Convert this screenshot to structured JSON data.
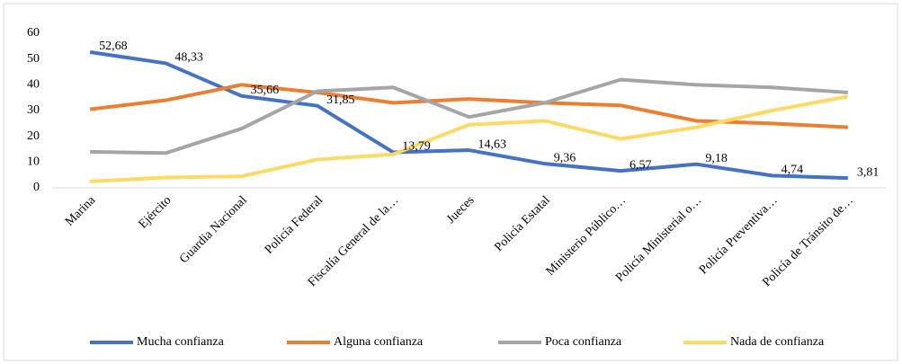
{
  "chart_data": {
    "type": "line",
    "categories": [
      "Marina",
      "Ejército",
      "Guardia Nacional",
      "Policía Federal",
      "Fiscalía General de la…",
      "Jueces",
      "Policía Estatal",
      "Ministerio Público…",
      "Policía Ministerial o…",
      "Policía Preventiva…",
      "Policía de Tránsito de…"
    ],
    "series": [
      {
        "name": "Mucha confianza",
        "color": "#4472c4",
        "values": [
          52.68,
          48.33,
          35.66,
          31.85,
          13.79,
          14.63,
          9.36,
          6.57,
          9.18,
          4.74,
          3.81
        ],
        "value_labels": [
          "52,68",
          "48,33",
          "35,66",
          "31,85",
          "13,79",
          "14,63",
          "9,36",
          "6,57",
          "9,18",
          "4,74",
          "3,81"
        ]
      },
      {
        "name": "Alguna confianza",
        "color": "#ed7d31",
        "values": [
          30.5,
          34,
          40,
          37,
          33,
          34.5,
          33,
          32,
          26,
          25,
          23.5
        ]
      },
      {
        "name": "Poca confianza",
        "color": "#a5a5a5",
        "values": [
          14,
          13.5,
          23,
          37.5,
          39,
          27.5,
          33,
          42,
          40,
          39,
          37
        ]
      },
      {
        "name": "Nada de confianza",
        "color": "#ffd966",
        "values": [
          2.5,
          4,
          4.5,
          11,
          13,
          24.5,
          26,
          19,
          23.5,
          30,
          35.5
        ]
      }
    ],
    "ylim": [
      0,
      60
    ],
    "yticks": [
      0,
      10,
      20,
      30,
      40,
      50,
      60
    ],
    "legend": "bottom"
  }
}
